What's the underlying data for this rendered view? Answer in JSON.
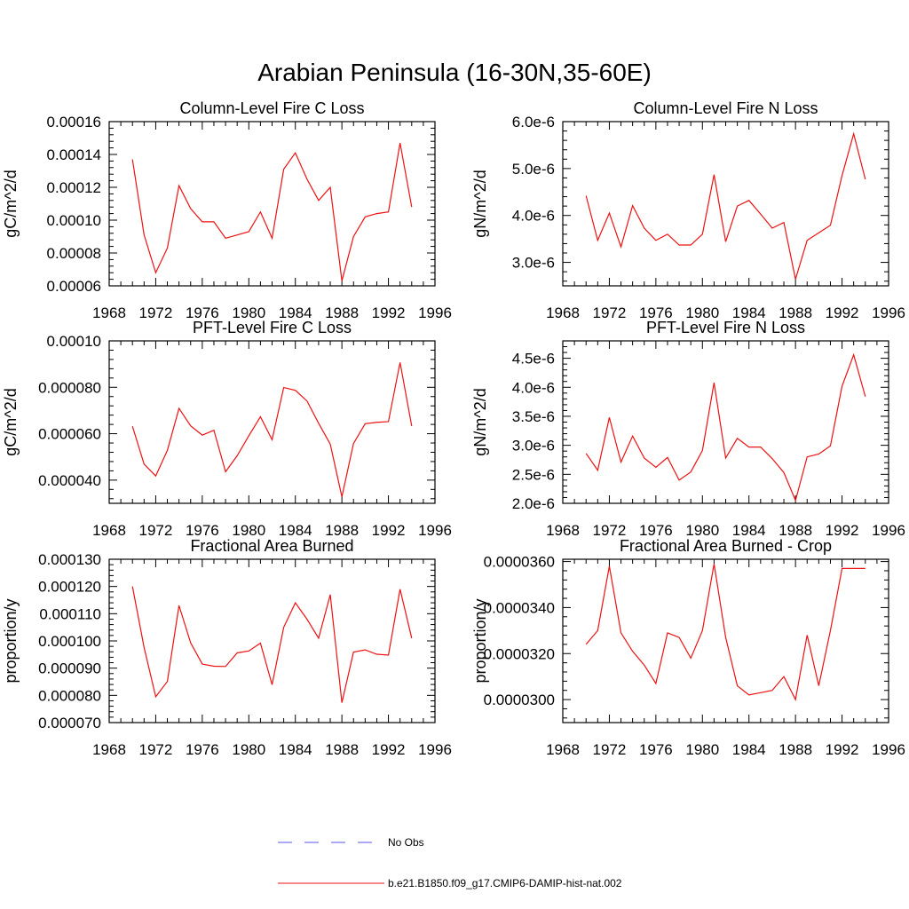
{
  "title": "Arabian Peninsula (16-30N,35-60E)",
  "legend": [
    {
      "label": "No Obs",
      "color": "#5555ee",
      "dash": true
    },
    {
      "label": "b.e21.B1850.f09_g17.CMIP6-DAMIP-hist-nat.002",
      "color": "#ee1111",
      "dash": false
    }
  ],
  "colors": {
    "series": "#ee1111",
    "axis": "#000000"
  },
  "chart_data": [
    {
      "type": "line",
      "title": "Column-Level Fire C Loss",
      "ylabel": "gC/m^2/d",
      "xlim": [
        1968,
        1996
      ],
      "ylim": [
        6e-05,
        0.00016
      ],
      "xticks": [
        "1968",
        "1972",
        "1976",
        "1980",
        "1984",
        "1988",
        "1992",
        "1996"
      ],
      "yticks": [
        "0.00006",
        "0.00008",
        "0.00010",
        "0.00012",
        "0.00014",
        "0.00016"
      ],
      "x": [
        1970,
        1971,
        1972,
        1973,
        1974,
        1975,
        1976,
        1977,
        1978,
        1979,
        1980,
        1981,
        1982,
        1983,
        1984,
        1985,
        1986,
        1987,
        1988,
        1989,
        1990,
        1991,
        1992,
        1993,
        1994
      ],
      "series": [
        {
          "values": [
            0.000137,
            9.1e-05,
            6.8e-05,
            8.3e-05,
            0.000121,
            0.000107,
            9.9e-05,
            9.9e-05,
            8.9e-05,
            9.1e-05,
            9.3e-05,
            0.000105,
            8.9e-05,
            0.000131,
            0.000141,
            0.000125,
            0.000112,
            0.00012,
            6.3e-05,
            9e-05,
            0.000102,
            0.000104,
            0.000105,
            0.000147,
            0.000108
          ]
        }
      ]
    },
    {
      "type": "line",
      "title": "Column-Level Fire N Loss",
      "ylabel": "gN/m^2/d",
      "xlim": [
        1968,
        1996
      ],
      "ylim": [
        2.5e-06,
        6e-06
      ],
      "xticks": [
        "1968",
        "1972",
        "1976",
        "1980",
        "1984",
        "1988",
        "1992",
        "1996"
      ],
      "yticks": [
        "3.0e-6",
        "4.0e-6",
        "5.0e-6",
        "6.0e-6"
      ],
      "x": [
        1970,
        1971,
        1972,
        1973,
        1974,
        1975,
        1976,
        1977,
        1978,
        1979,
        1980,
        1981,
        1982,
        1983,
        1984,
        1985,
        1986,
        1987,
        1988,
        1989,
        1990,
        1991,
        1992,
        1993,
        1994
      ],
      "series": [
        {
          "values": [
            4.42e-06,
            3.47e-06,
            4.05e-06,
            3.33e-06,
            4.21e-06,
            3.73e-06,
            3.47e-06,
            3.6e-06,
            3.37e-06,
            3.37e-06,
            3.6e-06,
            4.87e-06,
            3.44e-06,
            4.2e-06,
            4.32e-06,
            4.03e-06,
            3.73e-06,
            3.85e-06,
            2.64e-06,
            3.47e-06,
            3.63e-06,
            3.79e-06,
            4.85e-06,
            5.74e-06,
            4.77e-06
          ]
        }
      ]
    },
    {
      "type": "line",
      "title": "PFT-Level Fire C Loss",
      "ylabel": "gC/m^2/d",
      "xlim": [
        1968,
        1996
      ],
      "ylim": [
        3e-05,
        0.0001
      ],
      "xticks": [
        "1968",
        "1972",
        "1976",
        "1980",
        "1984",
        "1988",
        "1992",
        "1996"
      ],
      "yticks": [
        "0.000040",
        "0.000060",
        "0.000080",
        "0.00010"
      ],
      "x": [
        1970,
        1971,
        1972,
        1973,
        1974,
        1975,
        1976,
        1977,
        1978,
        1979,
        1980,
        1981,
        1982,
        1983,
        1984,
        1985,
        1986,
        1987,
        1988,
        1989,
        1990,
        1991,
        1992,
        1993,
        1994
      ],
      "series": [
        {
          "values": [
            6.32e-05,
            4.69e-05,
            4.18e-05,
            5.28e-05,
            7.09e-05,
            6.34e-05,
            5.94e-05,
            6.15e-05,
            4.36e-05,
            5.05e-05,
            5.91e-05,
            6.73e-05,
            5.74e-05,
            7.99e-05,
            7.87e-05,
            7.41e-05,
            6.45e-05,
            5.55e-05,
            3.28e-05,
            5.58e-05,
            6.43e-05,
            6.49e-05,
            6.52e-05,
            9.07e-05,
            6.33e-05
          ]
        }
      ]
    },
    {
      "type": "line",
      "title": "PFT-Level Fire N Loss",
      "ylabel": "gN/m^2/d",
      "xlim": [
        1968,
        1996
      ],
      "ylim": [
        2e-06,
        4.8e-06
      ],
      "xticks": [
        "1968",
        "1972",
        "1976",
        "1980",
        "1984",
        "1988",
        "1992",
        "1996"
      ],
      "yticks": [
        "2.0e-6",
        "2.5e-6",
        "3.0e-6",
        "3.5e-6",
        "4.0e-6",
        "4.5e-6"
      ],
      "x": [
        1970,
        1971,
        1972,
        1973,
        1974,
        1975,
        1976,
        1977,
        1978,
        1979,
        1980,
        1981,
        1982,
        1983,
        1984,
        1985,
        1986,
        1987,
        1988,
        1989,
        1990,
        1991,
        1992,
        1993,
        1994
      ],
      "series": [
        {
          "values": [
            2.86e-06,
            2.57e-06,
            3.48e-06,
            2.71e-06,
            3.16e-06,
            2.78e-06,
            2.62e-06,
            2.79e-06,
            2.4e-06,
            2.54e-06,
            2.91e-06,
            4.08e-06,
            2.78e-06,
            3.12e-06,
            2.97e-06,
            2.97e-06,
            2.77e-06,
            2.53e-06,
            2.05e-06,
            2.8e-06,
            2.85e-06,
            2.99e-06,
            4.02e-06,
            4.56e-06,
            3.84e-06
          ]
        }
      ]
    },
    {
      "type": "line",
      "title": "Fractional Area Burned",
      "ylabel": "proportion/y",
      "xlim": [
        1968,
        1996
      ],
      "ylim": [
        7e-05,
        0.00013
      ],
      "xticks": [
        "1968",
        "1972",
        "1976",
        "1980",
        "1984",
        "1988",
        "1992",
        "1996"
      ],
      "yticks": [
        "0.000070",
        "0.000080",
        "0.000090",
        "0.000100",
        "0.000110",
        "0.000120",
        "0.000130"
      ],
      "x": [
        1970,
        1971,
        1972,
        1973,
        1974,
        1975,
        1976,
        1977,
        1978,
        1979,
        1980,
        1981,
        1982,
        1983,
        1984,
        1985,
        1986,
        1987,
        1988,
        1989,
        1990,
        1991,
        1992,
        1993,
        1994
      ],
      "series": [
        {
          "values": [
            0.00012,
            9.76e-05,
            7.95e-05,
            8.51e-05,
            0.000113,
            9.93e-05,
            9.15e-05,
            9.07e-05,
            9.06e-05,
            9.56e-05,
            9.63e-05,
            9.92e-05,
            8.39e-05,
            0.000105,
            0.000114,
            0.000108,
            0.000101,
            0.000117,
            7.73e-05,
            9.59e-05,
            9.67e-05,
            9.51e-05,
            9.48e-05,
            0.000119,
            0.000101
          ]
        }
      ]
    },
    {
      "type": "line",
      "title": "Fractional Area Burned - Crop",
      "ylabel": "proportion/y",
      "xlim": [
        1968,
        1996
      ],
      "ylim": [
        2.9e-05,
        3.61e-05
      ],
      "xticks": [
        "1968",
        "1972",
        "1976",
        "1980",
        "1984",
        "1988",
        "1992",
        "1996"
      ],
      "yticks": [
        "0.0000300",
        "0.0000320",
        "0.0000340",
        "0.0000360"
      ],
      "x": [
        1970,
        1971,
        1972,
        1973,
        1974,
        1975,
        1976,
        1977,
        1978,
        1979,
        1980,
        1981,
        1982,
        1983,
        1984,
        1985,
        1986,
        1987,
        1988,
        1989,
        1990,
        1991,
        1992,
        1993,
        1994
      ],
      "series": [
        {
          "values": [
            3.24e-05,
            3.3e-05,
            3.58e-05,
            3.29e-05,
            3.21e-05,
            3.15e-05,
            3.07e-05,
            3.29e-05,
            3.27e-05,
            3.18e-05,
            3.3e-05,
            3.59e-05,
            3.27e-05,
            3.06e-05,
            3.02e-05,
            3.03e-05,
            3.04e-05,
            3.1e-05,
            3e-05,
            3.28e-05,
            3.06e-05,
            3.3e-05,
            3.57e-05,
            3.57e-05,
            3.57e-05
          ]
        }
      ]
    }
  ]
}
